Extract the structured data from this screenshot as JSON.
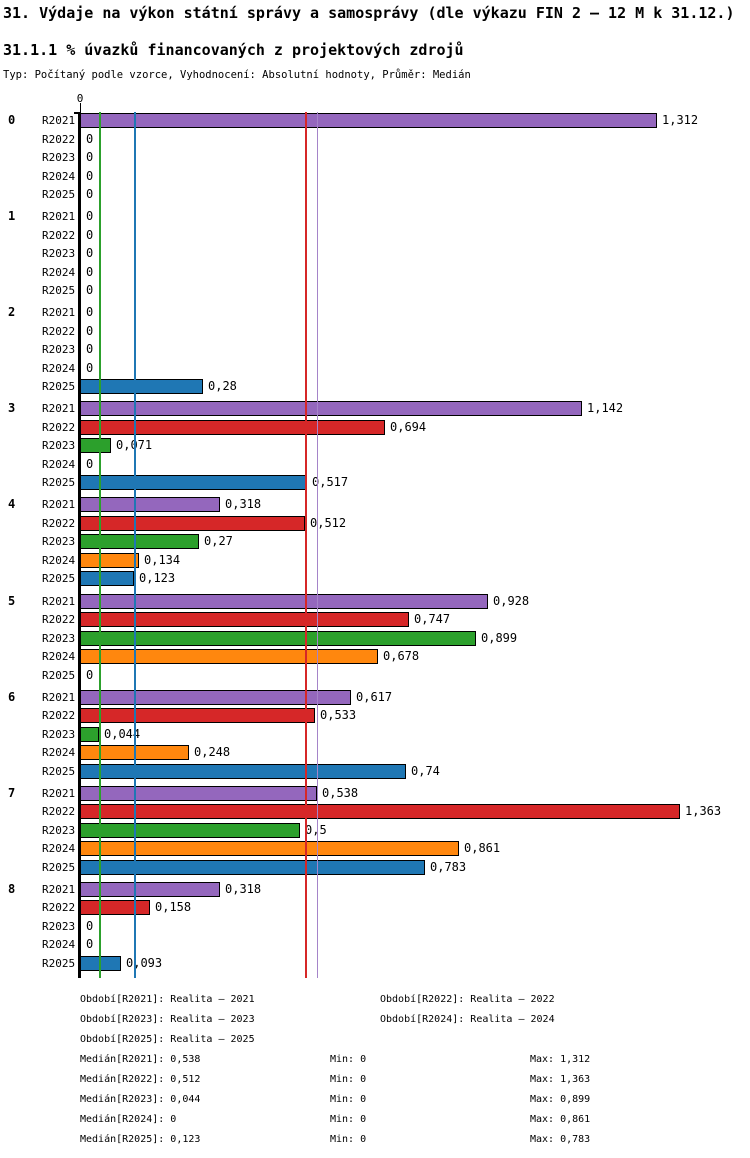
{
  "page_title": "31. Výdaje na výkon státní správy a samosprávy (dle výkazu FIN 2 – 12 M k 31.12.)",
  "section_title": "31.1.1 % úvazků financovaných z projektových zdrojů",
  "meta_line": "Typ: Počítaný podle vzorce, Vyhodnocení: Absolutní hodnoty, Průměr: Medián",
  "axis": {
    "origin_label": "0"
  },
  "chart_data": {
    "type": "bar",
    "orientation": "horizontal",
    "value_format": "comma-decimal",
    "xlim": [
      0,
      1.45
    ],
    "grid": false,
    "series": [
      {
        "key": "R2021",
        "name": "Realita – 2021",
        "color": "#9467bd",
        "median": 0.538,
        "min": 0,
        "max": 1.312
      },
      {
        "key": "R2022",
        "name": "Realita – 2022",
        "color": "#d62728",
        "median": 0.512,
        "min": 0,
        "max": 1.363
      },
      {
        "key": "R2023",
        "name": "Realita – 2023",
        "color": "#2ca02c",
        "median": 0.044,
        "min": 0,
        "max": 0.899
      },
      {
        "key": "R2024",
        "name": "Realita – 2024",
        "color": "#ff870e",
        "median": 0,
        "min": 0,
        "max": 0.861
      },
      {
        "key": "R2025",
        "name": "Realita – 2025",
        "color": "#1f77b4",
        "median": 0.123,
        "min": 0,
        "max": 0.783
      }
    ],
    "groups": [
      {
        "label": "0",
        "values": [
          1.312,
          0,
          0,
          0,
          0
        ],
        "display": [
          "1,312",
          "0",
          "0",
          "0",
          "0"
        ]
      },
      {
        "label": "1",
        "values": [
          0,
          0,
          0,
          0,
          0
        ],
        "display": [
          "0",
          "0",
          "0",
          "0",
          "0"
        ]
      },
      {
        "label": "2",
        "values": [
          0,
          0,
          0,
          0,
          0.28
        ],
        "display": [
          "0",
          "0",
          "0",
          "0",
          "0,28"
        ]
      },
      {
        "label": "3",
        "values": [
          1.142,
          0.694,
          0.071,
          0,
          0.517
        ],
        "display": [
          "1,142",
          "0,694",
          "0,071",
          "0",
          "0,517"
        ]
      },
      {
        "label": "4",
        "values": [
          0.318,
          0.512,
          0.27,
          0.134,
          0.123
        ],
        "display": [
          "0,318",
          "0,512",
          "0,27",
          "0,134",
          "0,123"
        ]
      },
      {
        "label": "5",
        "values": [
          0.928,
          0.747,
          0.899,
          0.678,
          0
        ],
        "display": [
          "0,928",
          "0,747",
          "0,899",
          "0,678",
          "0"
        ]
      },
      {
        "label": "6",
        "values": [
          0.617,
          0.533,
          0.044,
          0.248,
          0.74
        ],
        "display": [
          "0,617",
          "0,533",
          "0,044",
          "0,248",
          "0,74"
        ]
      },
      {
        "label": "7",
        "values": [
          0.538,
          1.363,
          0.5,
          0.861,
          0.783
        ],
        "display": [
          "0,538",
          "1,363",
          "0,5",
          "0,861",
          "0,783"
        ]
      },
      {
        "label": "8",
        "values": [
          0.318,
          0.158,
          0,
          0,
          0.093
        ],
        "display": [
          "0,318",
          "0,158",
          "0",
          "0",
          "0,093"
        ]
      }
    ],
    "median_lines": [
      {
        "series": "R2021",
        "value": 0.538,
        "color": "#a584c9"
      },
      {
        "series": "R2022",
        "value": 0.512,
        "color": "#d62728"
      },
      {
        "series": "R2023",
        "value": 0.044,
        "color": "#2ca02c"
      },
      {
        "series": "R2024",
        "value": 0,
        "color": "#ff870e"
      },
      {
        "series": "R2025",
        "value": 0.123,
        "color": "#1f77b4"
      }
    ]
  },
  "legend": {
    "periods": [
      "Období[R2021]: Realita – 2021",
      "Období[R2022]: Realita – 2022",
      "Období[R2023]: Realita – 2023",
      "Období[R2024]: Realita – 2024",
      "Období[R2025]: Realita – 2025"
    ],
    "stats": [
      {
        "label": "Medián[R2021]: 0,538",
        "min": "Min: 0",
        "max": "Max: 1,312"
      },
      {
        "label": "Medián[R2022]: 0,512",
        "min": "Min: 0",
        "max": "Max: 1,363"
      },
      {
        "label": "Medián[R2023]: 0,044",
        "min": "Min: 0",
        "max": "Max: 0,899"
      },
      {
        "label": "Medián[R2024]: 0",
        "min": "Min: 0",
        "max": "Max: 0,861"
      },
      {
        "label": "Medián[R2025]: 0,123",
        "min": "Min: 0",
        "max": "Max: 0,783"
      }
    ]
  }
}
